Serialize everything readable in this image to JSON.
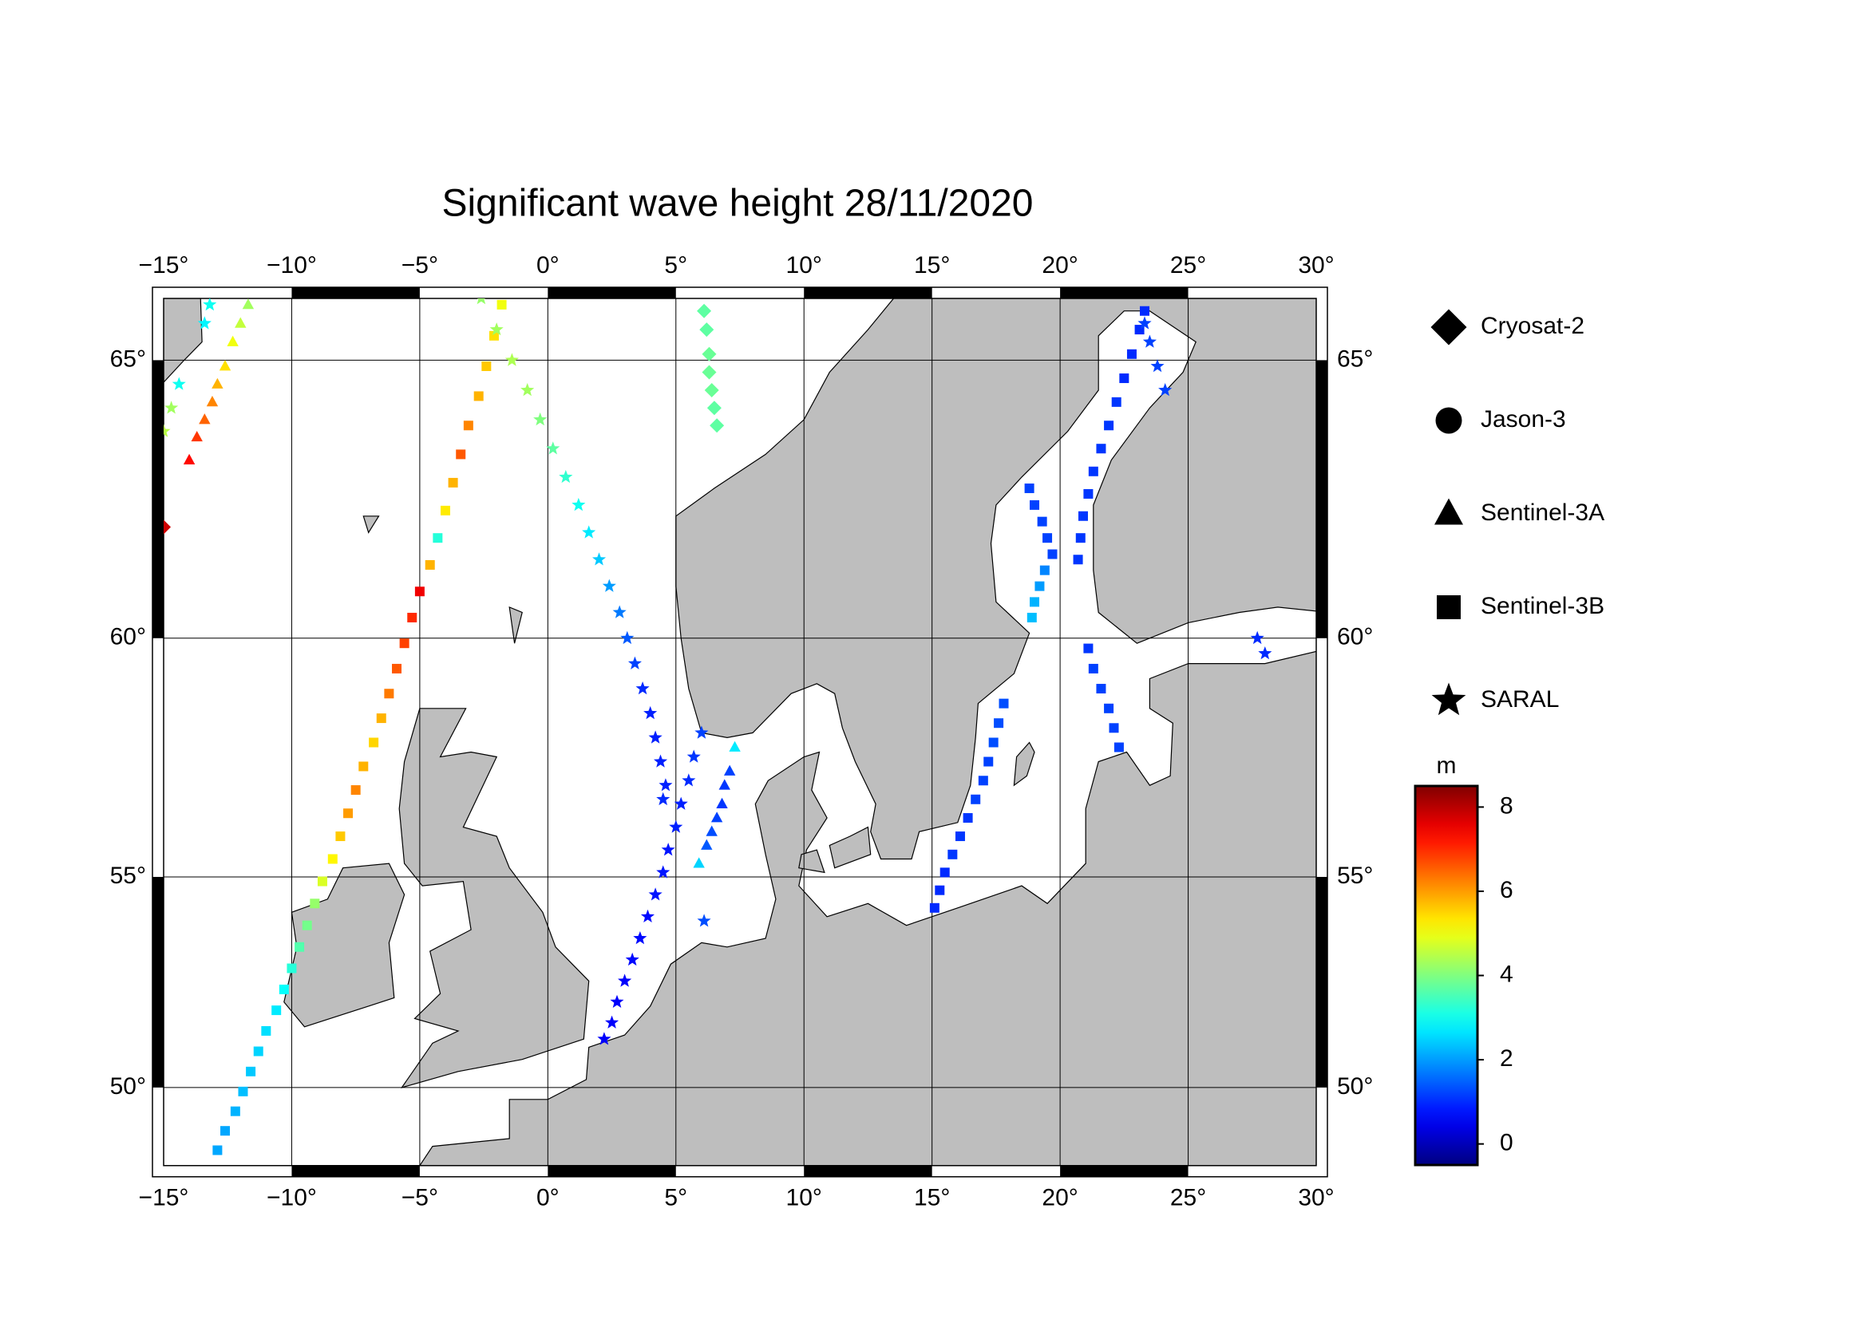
{
  "chart_data": {
    "type": "scatter",
    "title": "Significant wave height 28/11/2020",
    "xlim": [
      -15,
      30
    ],
    "ylim": [
      48,
      66
    ],
    "xticks": [
      {
        "value": -15,
        "label": "−15°"
      },
      {
        "value": -10,
        "label": "−10°"
      },
      {
        "value": -5,
        "label": "−5°"
      },
      {
        "value": 0,
        "label": "0°"
      },
      {
        "value": 5,
        "label": "5°"
      },
      {
        "value": 10,
        "label": "10°"
      },
      {
        "value": 15,
        "label": "15°"
      },
      {
        "value": 20,
        "label": "20°"
      },
      {
        "value": 25,
        "label": "25°"
      },
      {
        "value": 30,
        "label": "30°"
      }
    ],
    "yticks": [
      {
        "value": 50,
        "label": "50°"
      },
      {
        "value": 55,
        "label": "55°"
      },
      {
        "value": 60,
        "label": "60°"
      },
      {
        "value": 65,
        "label": "65°"
      }
    ],
    "grid": true,
    "legend": "right",
    "land_color": "#bebebe",
    "colorbar": {
      "label": "m",
      "lim": [
        -0.5,
        8.5
      ],
      "ticks": [
        0,
        2,
        4,
        6,
        8
      ],
      "colormap": "jet"
    },
    "series": [
      {
        "name": "Cryosat-2",
        "marker": "diamond",
        "x": [
          6.1,
          6.2,
          6.3,
          6.3,
          6.4,
          6.5,
          6.6,
          -15.0
        ],
        "y": [
          65.8,
          65.5,
          65.1,
          64.8,
          64.5,
          64.2,
          63.9,
          62.1
        ],
        "values": [
          3.7,
          3.7,
          3.8,
          3.8,
          3.8,
          3.7,
          3.7,
          7.8
        ]
      },
      {
        "name": "Jason-3",
        "marker": "circle",
        "x": [],
        "y": [],
        "values": []
      },
      {
        "name": "Sentinel-3A",
        "marker": "triangle",
        "x": [
          -11.7,
          -12.0,
          -12.3,
          -12.6,
          -12.9,
          -13.1,
          -13.4,
          -13.7,
          -14.0,
          7.3,
          7.1,
          6.9,
          6.8,
          6.6,
          6.4,
          6.2,
          5.9
        ],
        "y": [
          65.9,
          65.6,
          65.3,
          64.9,
          64.6,
          64.3,
          64.0,
          63.7,
          63.3,
          57.8,
          57.3,
          57.0,
          56.6,
          56.3,
          56.0,
          55.7,
          55.3
        ],
        "values": [
          4.3,
          4.6,
          5.0,
          5.4,
          5.8,
          6.2,
          6.5,
          6.9,
          7.3,
          2.7,
          1.2,
          1.1,
          1.1,
          1.2,
          1.3,
          1.4,
          2.5
        ]
      },
      {
        "name": "Sentinel-3B",
        "marker": "square",
        "x": [
          -1.8,
          -2.1,
          -2.4,
          -2.7,
          -3.1,
          -3.4,
          -3.7,
          -4.0,
          -4.3,
          -4.6,
          -5.0,
          -5.3,
          -5.6,
          -5.9,
          -6.2,
          -6.5,
          -6.8,
          -7.2,
          -7.5,
          -7.8,
          -8.1,
          -8.4,
          -8.8,
          -9.1,
          -9.4,
          -9.7,
          -10.0,
          -10.3,
          -10.6,
          -11.0,
          -11.3,
          -11.6,
          -11.9,
          -12.2,
          -12.6,
          -12.9,
          23.3,
          23.1,
          22.8,
          22.5,
          22.2,
          21.9,
          21.6,
          21.3,
          21.1,
          20.9,
          20.8,
          20.7,
          21.1,
          21.3,
          21.6,
          21.9,
          22.1,
          22.3,
          18.8,
          19.0,
          19.3,
          19.5,
          19.7,
          19.4,
          19.2,
          19.0,
          18.9,
          17.8,
          17.6,
          17.4,
          17.2,
          17.0,
          16.7,
          16.4,
          16.1,
          15.8,
          15.5,
          15.3,
          15.1
        ],
        "y": [
          65.9,
          65.4,
          64.9,
          64.4,
          63.9,
          63.4,
          62.9,
          62.4,
          61.9,
          61.4,
          60.9,
          60.4,
          59.9,
          59.4,
          58.9,
          58.4,
          57.9,
          57.4,
          56.9,
          56.4,
          55.9,
          55.4,
          54.9,
          54.4,
          53.9,
          53.4,
          52.9,
          52.4,
          51.9,
          51.4,
          50.9,
          50.4,
          49.9,
          49.4,
          48.9,
          48.4,
          65.8,
          65.5,
          65.1,
          64.7,
          64.3,
          63.9,
          63.5,
          63.1,
          62.7,
          62.3,
          61.9,
          61.5,
          59.8,
          59.4,
          59.0,
          58.6,
          58.2,
          57.8,
          62.8,
          62.5,
          62.2,
          61.9,
          61.6,
          61.3,
          61.0,
          60.7,
          60.4,
          58.7,
          58.3,
          57.9,
          57.5,
          57.1,
          56.7,
          56.3,
          55.9,
          55.5,
          55.1,
          54.7,
          54.3
        ],
        "values": [
          5.0,
          5.4,
          5.6,
          5.8,
          6.2,
          6.6,
          5.8,
          5.3,
          3.2,
          5.8,
          7.5,
          7.0,
          6.8,
          6.6,
          6.3,
          5.8,
          5.5,
          5.8,
          6.2,
          6.0,
          5.6,
          5.2,
          4.8,
          4.2,
          3.9,
          3.6,
          3.2,
          2.9,
          2.7,
          2.6,
          2.5,
          2.4,
          2.3,
          2.2,
          2.1,
          2.1,
          1.0,
          1.0,
          1.0,
          1.0,
          1.1,
          1.1,
          1.1,
          1.1,
          1.1,
          1.1,
          1.1,
          1.1,
          1.1,
          1.2,
          1.2,
          1.2,
          1.2,
          1.2,
          1.2,
          1.2,
          1.2,
          1.2,
          1.2,
          1.8,
          2.0,
          2.2,
          2.3,
          1.3,
          1.3,
          1.3,
          1.2,
          1.2,
          1.2,
          1.1,
          1.1,
          1.1,
          1.0,
          1.0,
          1.0
        ]
      },
      {
        "name": "SARAL",
        "marker": "star",
        "x": [
          -2.6,
          -2.0,
          -1.4,
          -0.8,
          -0.3,
          0.2,
          0.7,
          1.2,
          1.6,
          2.0,
          2.4,
          2.8,
          3.1,
          3.4,
          3.7,
          4.0,
          4.2,
          4.4,
          4.6,
          4.5,
          6.0,
          5.7,
          5.5,
          5.2,
          5.0,
          4.7,
          4.5,
          4.2,
          3.9,
          3.6,
          3.3,
          3.0,
          2.7,
          2.5,
          2.2,
          23.3,
          23.5,
          23.8,
          24.1,
          27.7,
          28.0,
          -13.2,
          -13.4,
          -14.4,
          -14.7,
          -15.0,
          6.1
        ],
        "y": [
          66.0,
          65.5,
          65.0,
          64.5,
          64.0,
          63.5,
          63.0,
          62.5,
          62.0,
          61.5,
          61.0,
          60.5,
          60.0,
          59.5,
          59.0,
          58.5,
          58.0,
          57.5,
          57.0,
          56.7,
          58.1,
          57.6,
          57.1,
          56.6,
          56.1,
          55.6,
          55.1,
          54.6,
          54.1,
          53.6,
          53.1,
          52.6,
          52.1,
          51.6,
          51.2,
          65.6,
          65.3,
          64.9,
          64.5,
          60.0,
          59.7,
          65.9,
          65.6,
          64.6,
          64.2,
          63.8,
          54.0
        ],
        "values": [
          4.2,
          4.3,
          4.4,
          4.3,
          4.0,
          3.7,
          3.3,
          3.0,
          2.7,
          2.4,
          2.0,
          1.7,
          1.4,
          1.2,
          1.0,
          0.9,
          0.9,
          0.9,
          0.9,
          1.0,
          1.2,
          1.1,
          1.0,
          0.9,
          0.9,
          0.8,
          0.8,
          0.8,
          0.7,
          0.7,
          0.7,
          0.6,
          0.6,
          0.6,
          0.6,
          1.2,
          1.2,
          1.2,
          1.2,
          1.0,
          1.0,
          3.0,
          2.8,
          3.0,
          4.3,
          4.5,
          1.3
        ]
      }
    ]
  }
}
